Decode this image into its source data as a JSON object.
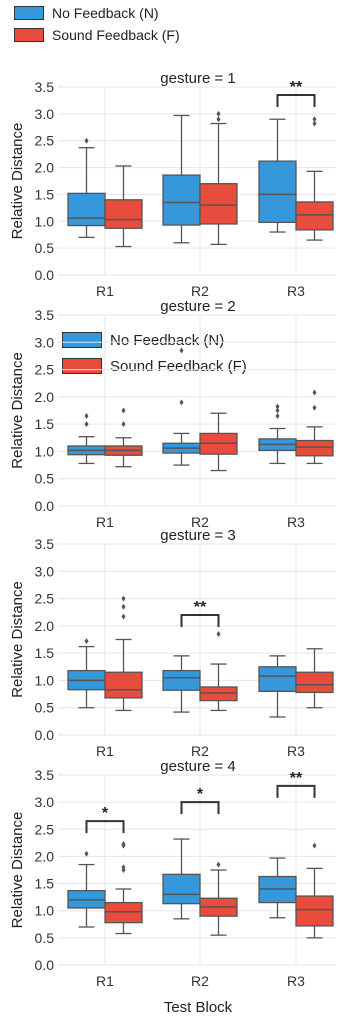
{
  "legend": {
    "no_feedback": "No Feedback (N)",
    "sound_feedback": "Sound Feedback (F)"
  },
  "colors": {
    "no_feedback": "#3498db",
    "sound_feedback": "#e74c3c",
    "grid": "#e6e6e6",
    "whisker": "#555555"
  },
  "xlabel": "Test Block",
  "ylabel": "Relative Distance",
  "chart_data": [
    {
      "type": "boxplot",
      "title": "gesture = 1",
      "categories": [
        "R1",
        "R2",
        "R3"
      ],
      "ylim": [
        0,
        3.5
      ],
      "yticks": [
        "0.0",
        "0.5",
        "1.0",
        "1.5",
        "2.0",
        "2.5",
        "3.0",
        "3.5"
      ],
      "series": [
        {
          "name": "No Feedback (N)",
          "boxes": [
            {
              "whislo": 0.7,
              "q1": 0.92,
              "med": 1.06,
              "q3": 1.52,
              "whishi": 2.37,
              "fliers": [
                2.5
              ]
            },
            {
              "whislo": 0.6,
              "q1": 0.93,
              "med": 1.35,
              "q3": 1.86,
              "whishi": 2.97,
              "fliers": []
            },
            {
              "whislo": 0.8,
              "q1": 0.98,
              "med": 1.5,
              "q3": 2.12,
              "whishi": 2.9,
              "fliers": []
            }
          ]
        },
        {
          "name": "Sound Feedback (F)",
          "boxes": [
            {
              "whislo": 0.53,
              "q1": 0.87,
              "med": 1.03,
              "q3": 1.4,
              "whishi": 2.03,
              "fliers": []
            },
            {
              "whislo": 0.57,
              "q1": 0.95,
              "med": 1.3,
              "q3": 1.7,
              "whishi": 2.82,
              "fliers": [
                2.9,
                3.0
              ]
            },
            {
              "whislo": 0.65,
              "q1": 0.84,
              "med": 1.12,
              "q3": 1.36,
              "whishi": 1.93,
              "fliers": [
                2.82,
                2.9
              ]
            }
          ]
        }
      ],
      "annotations": [
        {
          "category": 2,
          "label": "**",
          "y": 3.35
        }
      ]
    },
    {
      "type": "boxplot",
      "title": "gesture = 2",
      "categories": [
        "R1",
        "R2",
        "R3"
      ],
      "ylim": [
        0,
        3.5
      ],
      "yticks": [
        "0.0",
        "0.5",
        "1.0",
        "1.5",
        "2.0",
        "2.5",
        "3.0",
        "3.5"
      ],
      "series": [
        {
          "name": "No Feedback (N)",
          "boxes": [
            {
              "whislo": 0.78,
              "q1": 0.94,
              "med": 1.02,
              "q3": 1.1,
              "whishi": 1.27,
              "fliers": [
                1.5,
                1.65
              ]
            },
            {
              "whislo": 0.75,
              "q1": 0.97,
              "med": 1.06,
              "q3": 1.15,
              "whishi": 1.33,
              "fliers": [
                1.9,
                2.85
              ]
            },
            {
              "whislo": 0.78,
              "q1": 1.02,
              "med": 1.13,
              "q3": 1.23,
              "whishi": 1.42,
              "fliers": [
                1.65,
                1.75,
                1.82
              ]
            }
          ]
        },
        {
          "name": "Sound Feedback (F)",
          "boxes": [
            {
              "whislo": 0.72,
              "q1": 0.93,
              "med": 1.02,
              "q3": 1.1,
              "whishi": 1.25,
              "fliers": [
                1.5,
                1.75
              ]
            },
            {
              "whislo": 0.65,
              "q1": 0.95,
              "med": 1.15,
              "q3": 1.33,
              "whishi": 1.7,
              "fliers": []
            },
            {
              "whislo": 0.78,
              "q1": 0.92,
              "med": 1.08,
              "q3": 1.2,
              "whishi": 1.45,
              "fliers": [
                1.8,
                2.08
              ]
            }
          ]
        }
      ],
      "annotations": []
    },
    {
      "type": "boxplot",
      "title": "gesture = 3",
      "categories": [
        "R1",
        "R2",
        "R3"
      ],
      "ylim": [
        0,
        3.5
      ],
      "yticks": [
        "0.0",
        "0.5",
        "1.0",
        "1.5",
        "2.0",
        "2.5",
        "3.0",
        "3.5"
      ],
      "series": [
        {
          "name": "No Feedback (N)",
          "boxes": [
            {
              "whislo": 0.5,
              "q1": 0.83,
              "med": 1.0,
              "q3": 1.18,
              "whishi": 1.62,
              "fliers": [
                1.72
              ]
            },
            {
              "whislo": 0.42,
              "q1": 0.82,
              "med": 1.05,
              "q3": 1.18,
              "whishi": 1.45,
              "fliers": []
            },
            {
              "whislo": 0.33,
              "q1": 0.8,
              "med": 1.08,
              "q3": 1.25,
              "whishi": 1.45,
              "fliers": []
            }
          ]
        },
        {
          "name": "Sound Feedback (F)",
          "boxes": [
            {
              "whislo": 0.45,
              "q1": 0.68,
              "med": 0.83,
              "q3": 1.15,
              "whishi": 1.75,
              "fliers": [
                2.17,
                2.35,
                2.5
              ]
            },
            {
              "whislo": 0.45,
              "q1": 0.63,
              "med": 0.77,
              "q3": 0.88,
              "whishi": 1.3,
              "fliers": [
                1.85
              ]
            },
            {
              "whislo": 0.5,
              "q1": 0.78,
              "med": 0.92,
              "q3": 1.15,
              "whishi": 1.58,
              "fliers": []
            }
          ]
        }
      ],
      "annotations": [
        {
          "category": 1,
          "label": "**",
          "y": 2.2
        }
      ]
    },
    {
      "type": "boxplot",
      "title": "gesture = 4",
      "categories": [
        "R1",
        "R2",
        "R3"
      ],
      "ylim": [
        0,
        3.5
      ],
      "yticks": [
        "0.0",
        "0.5",
        "1.0",
        "1.5",
        "2.0",
        "2.5",
        "3.0",
        "3.5"
      ],
      "series": [
        {
          "name": "No Feedback (N)",
          "boxes": [
            {
              "whislo": 0.7,
              "q1": 1.05,
              "med": 1.2,
              "q3": 1.37,
              "whishi": 1.85,
              "fliers": [
                2.05
              ]
            },
            {
              "whislo": 0.85,
              "q1": 1.13,
              "med": 1.3,
              "q3": 1.67,
              "whishi": 2.32,
              "fliers": []
            },
            {
              "whislo": 0.87,
              "q1": 1.15,
              "med": 1.4,
              "q3": 1.63,
              "whishi": 1.97,
              "fliers": []
            }
          ]
        },
        {
          "name": "Sound Feedback (F)",
          "boxes": [
            {
              "whislo": 0.58,
              "q1": 0.78,
              "med": 0.98,
              "q3": 1.15,
              "whishi": 1.4,
              "fliers": [
                1.75,
                1.8,
                2.2,
                2.23
              ]
            },
            {
              "whislo": 0.55,
              "q1": 0.9,
              "med": 1.07,
              "q3": 1.23,
              "whishi": 1.75,
              "fliers": [
                1.85
              ]
            },
            {
              "whislo": 0.5,
              "q1": 0.72,
              "med": 1.02,
              "q3": 1.27,
              "whishi": 1.78,
              "fliers": [
                2.2
              ]
            }
          ]
        }
      ],
      "annotations": [
        {
          "category": 0,
          "label": "*",
          "y": 2.65
        },
        {
          "category": 1,
          "label": "*",
          "y": 3.0
        },
        {
          "category": 2,
          "label": "**",
          "y": 3.3
        }
      ]
    }
  ]
}
